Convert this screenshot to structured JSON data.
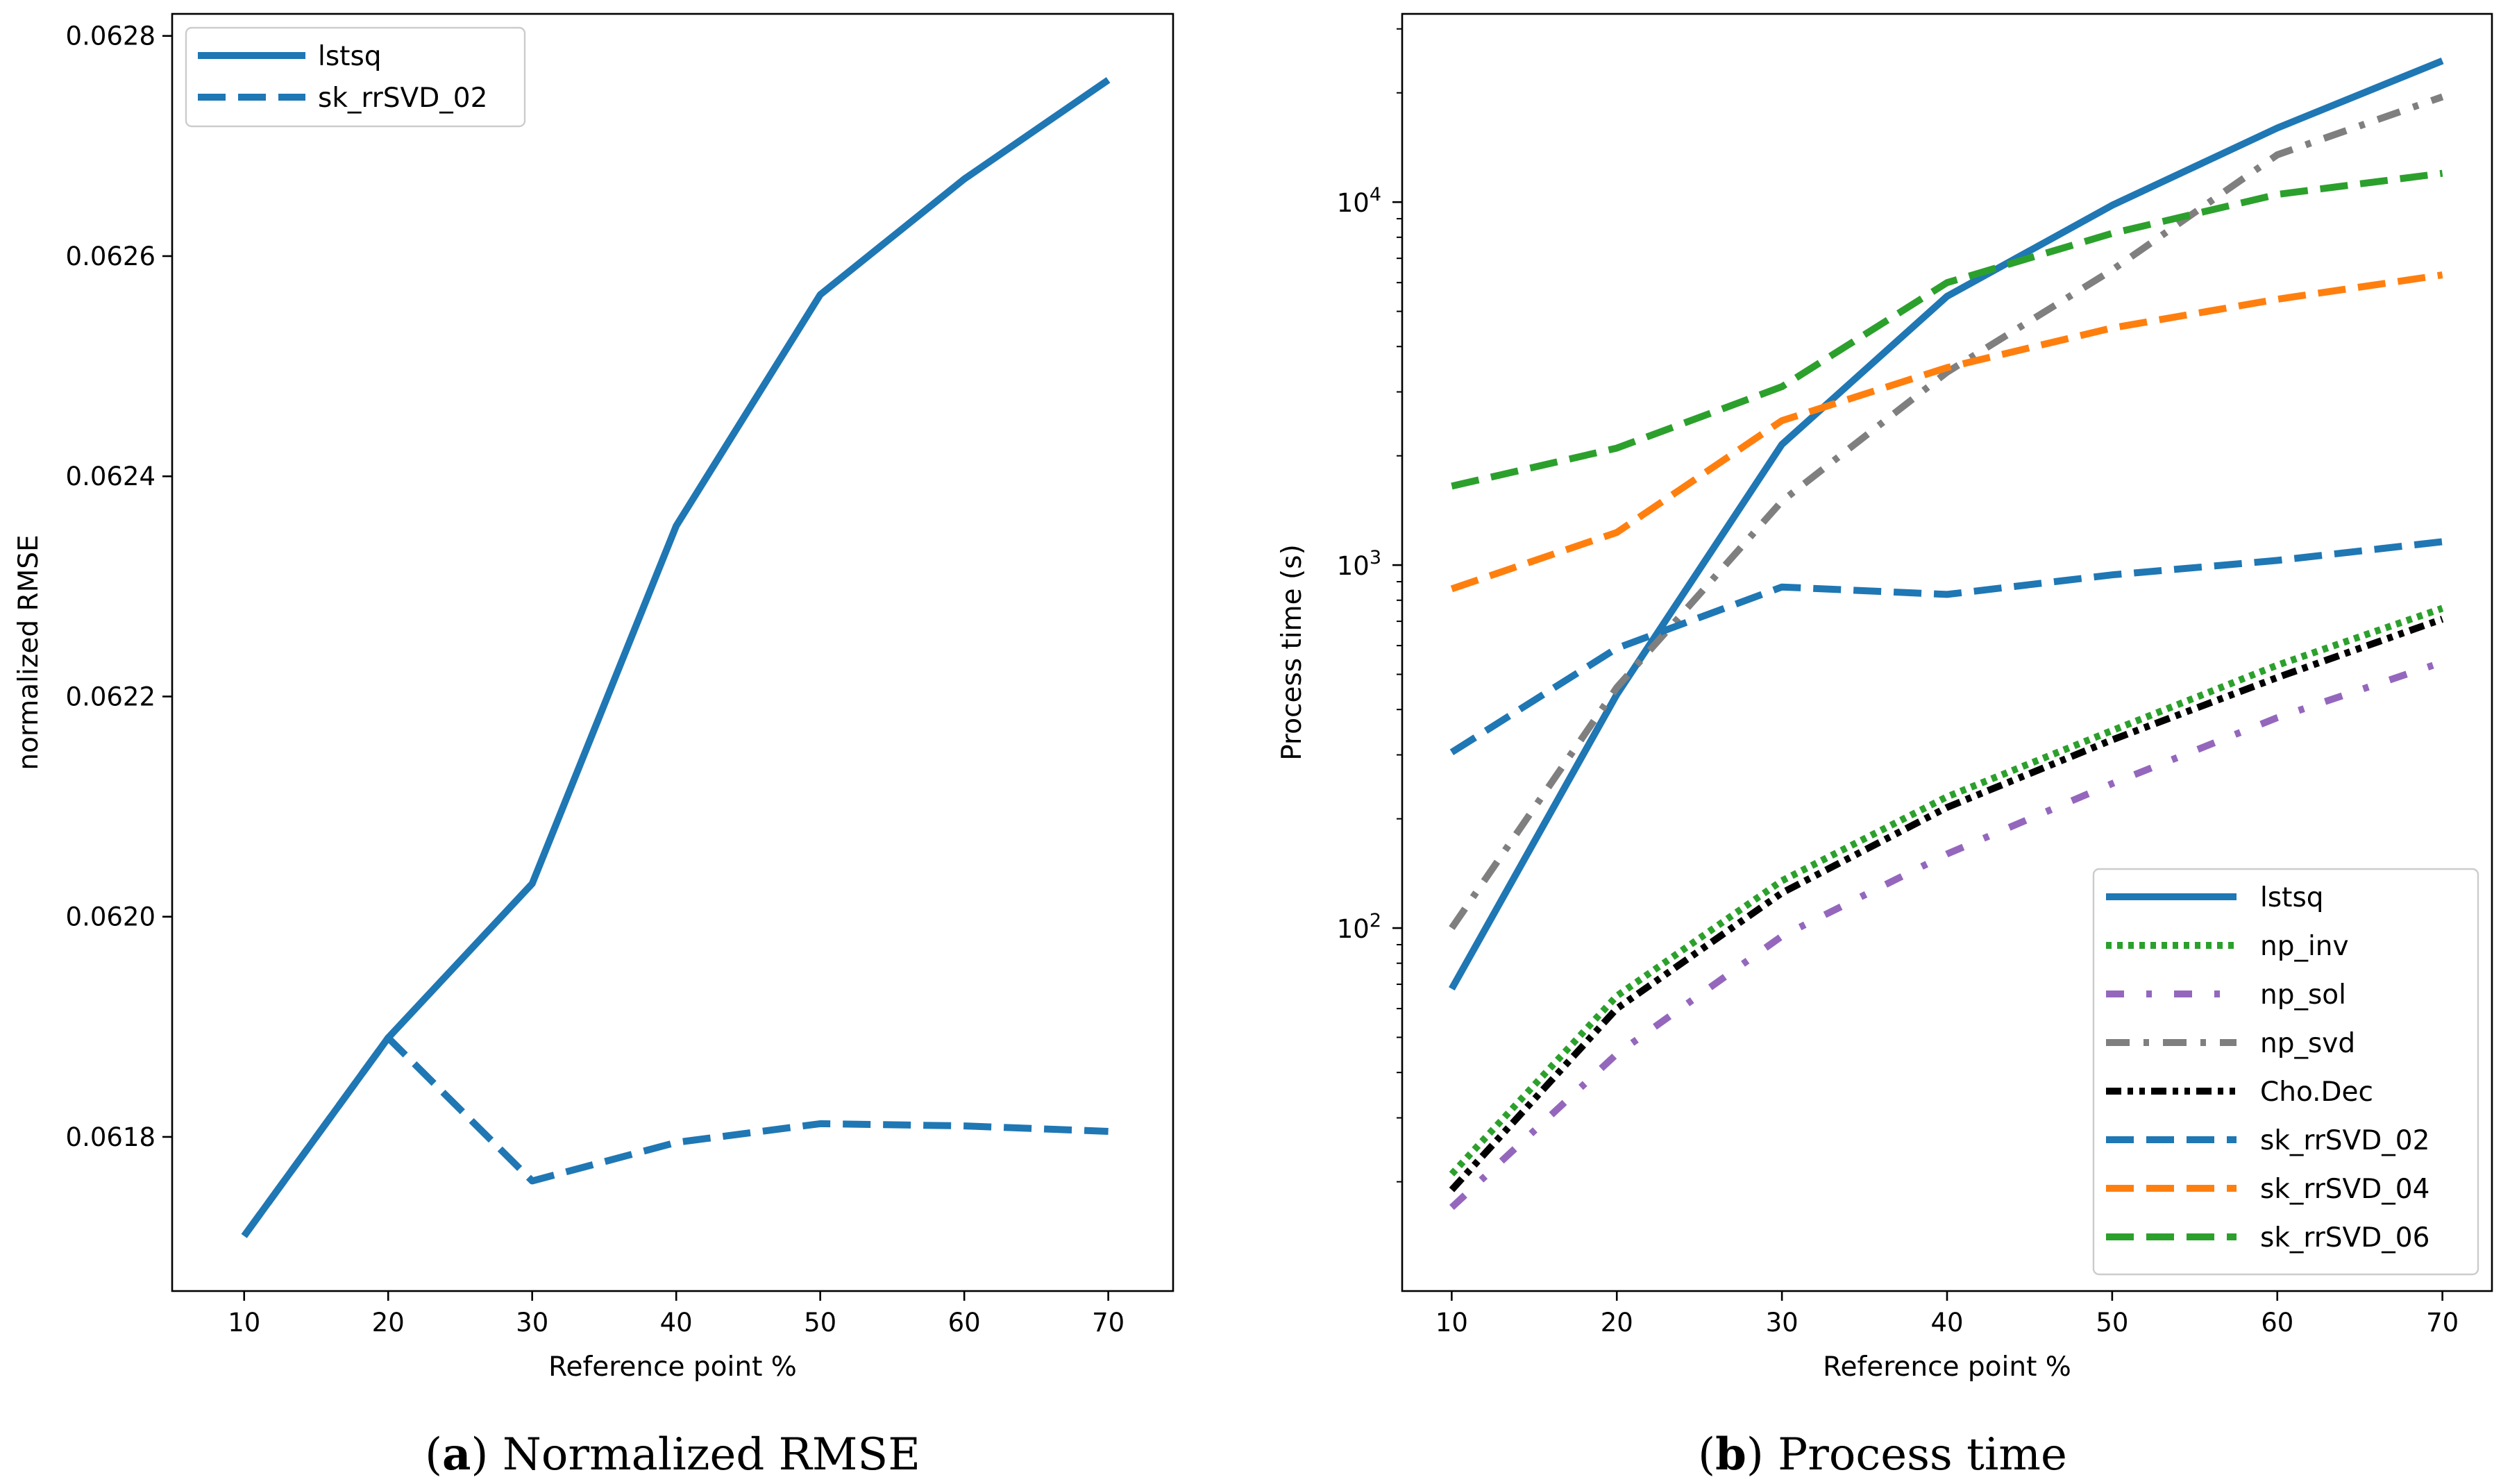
{
  "chart_data": [
    {
      "type": "line",
      "panel_letter": "a",
      "caption": "Normalized RMSE",
      "xlabel": "Reference point %",
      "ylabel": "normalized RMSE",
      "x": [
        10,
        20,
        30,
        40,
        50,
        60,
        70
      ],
      "xticks": [
        10,
        20,
        30,
        40,
        50,
        60,
        70
      ],
      "yscale": "linear",
      "yticks": [
        0.0618,
        0.062,
        0.0622,
        0.0624,
        0.0626,
        0.0628
      ],
      "ytick_labels": [
        "0.0618",
        "0.0620",
        "0.0622",
        "0.0624",
        "0.0626",
        "0.0628"
      ],
      "xlim": [
        5,
        74.5
      ],
      "ylim": [
        0.06166,
        0.06282
      ],
      "legend_position": "top-left",
      "series": [
        {
          "name": "lstsq",
          "style": "solid",
          "color": "#1f77b4",
          "values": [
            0.06171,
            0.06189,
            0.06203,
            0.062355,
            0.062565,
            0.06267,
            0.06276
          ]
        },
        {
          "name": "sk_rrSVD_02",
          "style": "dashed",
          "color": "#1f77b4",
          "values": [
            0.06171,
            0.06189,
            0.06176,
            0.061795,
            0.061812,
            0.06181,
            0.061805
          ]
        }
      ],
      "legend_series": [
        "lstsq",
        "sk_rrSVD_02"
      ]
    },
    {
      "type": "line",
      "panel_letter": "b",
      "caption": "Process time",
      "xlabel": "Reference point %",
      "ylabel": "Process time (s)",
      "x": [
        10,
        20,
        30,
        40,
        50,
        60,
        70
      ],
      "xticks": [
        10,
        20,
        30,
        40,
        50,
        60,
        70
      ],
      "yscale": "log",
      "yticks": [
        100,
        1000,
        10000
      ],
      "ytick_bases": [
        "10",
        "10",
        "10"
      ],
      "ytick_exponents": [
        "2",
        "3",
        "4"
      ],
      "ylim": [
        10,
        33000
      ],
      "xlim": [
        7,
        73
      ],
      "legend_position": "bottom-right",
      "series": [
        {
          "name": "lstsq",
          "style": "solid",
          "color": "#1f77b4",
          "values": [
            68,
            440,
            2150,
            5500,
            9800,
            16000,
            24500
          ]
        },
        {
          "name": "np_inv",
          "style": "dotted",
          "color": "#2ca02c",
          "values": [
            21,
            65,
            135,
            230,
            350,
            530,
            760
          ]
        },
        {
          "name": "np_sol",
          "style": "dashdot-sparse",
          "color": "#9467bd",
          "values": [
            17,
            45,
            95,
            160,
            250,
            380,
            540
          ]
        },
        {
          "name": "np_svd",
          "style": "dashdot",
          "color": "#7f7f7f",
          "values": [
            100,
            460,
            1500,
            3400,
            6500,
            13500,
            19500
          ]
        },
        {
          "name": "Cho.Dec",
          "style": "dashdotdot",
          "color": "#000000",
          "values": [
            19,
            60,
            125,
            215,
            330,
            490,
            710
          ]
        },
        {
          "name": "sk_rrSVD_02",
          "style": "dashed",
          "color": "#1f77b4",
          "values": [
            305,
            590,
            870,
            830,
            940,
            1030,
            1160
          ]
        },
        {
          "name": "sk_rrSVD_04",
          "style": "dashed",
          "color": "#ff7f0e",
          "values": [
            860,
            1230,
            2500,
            3500,
            4500,
            5400,
            6300
          ]
        },
        {
          "name": "sk_rrSVD_06",
          "style": "dashed",
          "color": "#2ca02c",
          "values": [
            1650,
            2100,
            3100,
            6000,
            8200,
            10500,
            12000
          ]
        }
      ]
    }
  ]
}
